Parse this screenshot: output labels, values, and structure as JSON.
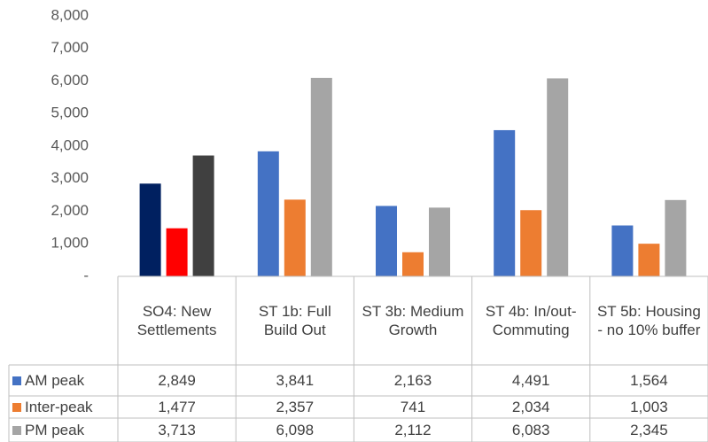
{
  "chart_data": {
    "type": "bar",
    "categories": [
      "SO4: New Settlements",
      "ST 1b: Full Build Out",
      "ST 3b: Medium Growth",
      "ST 4b: In/out-Commuting",
      "ST 5b: Housing - no 10% buffer"
    ],
    "series": [
      {
        "name": "AM peak",
        "color": "#4472c4",
        "colors": [
          "#002060",
          "#4472c4",
          "#4472c4",
          "#4472c4",
          "#4472c4"
        ],
        "values": [
          2849,
          3841,
          2163,
          4491,
          1564
        ],
        "value_labels": [
          "2,849",
          "3,841",
          "2,163",
          "4,491",
          "1,564"
        ]
      },
      {
        "name": "Inter-peak",
        "color": "#ed7d31",
        "colors": [
          "#ff0000",
          "#ed7d31",
          "#ed7d31",
          "#ed7d31",
          "#ed7d31"
        ],
        "values": [
          1477,
          2357,
          741,
          2034,
          1003
        ],
        "value_labels": [
          "1,477",
          "2,357",
          "741",
          "2,034",
          "1,003"
        ]
      },
      {
        "name": "PM peak",
        "color": "#a5a5a5",
        "colors": [
          "#404040",
          "#a5a5a5",
          "#a5a5a5",
          "#a5a5a5",
          "#a5a5a5"
        ],
        "values": [
          3713,
          6098,
          2112,
          6083,
          2345
        ],
        "value_labels": [
          "3,713",
          "6,098",
          "2,112",
          "6,083",
          "2,345"
        ]
      }
    ],
    "ylim": [
      0,
      8000
    ],
    "yticks": [
      {
        "value": 0,
        "label": "-"
      },
      {
        "value": 1000,
        "label": "1,000"
      },
      {
        "value": 2000,
        "label": "2,000"
      },
      {
        "value": 3000,
        "label": "3,000"
      },
      {
        "value": 4000,
        "label": "4,000"
      },
      {
        "value": 5000,
        "label": "5,000"
      },
      {
        "value": 6000,
        "label": "6,000"
      },
      {
        "value": 7000,
        "label": "7,000"
      },
      {
        "value": 8000,
        "label": "8,000"
      }
    ],
    "grid": false
  }
}
